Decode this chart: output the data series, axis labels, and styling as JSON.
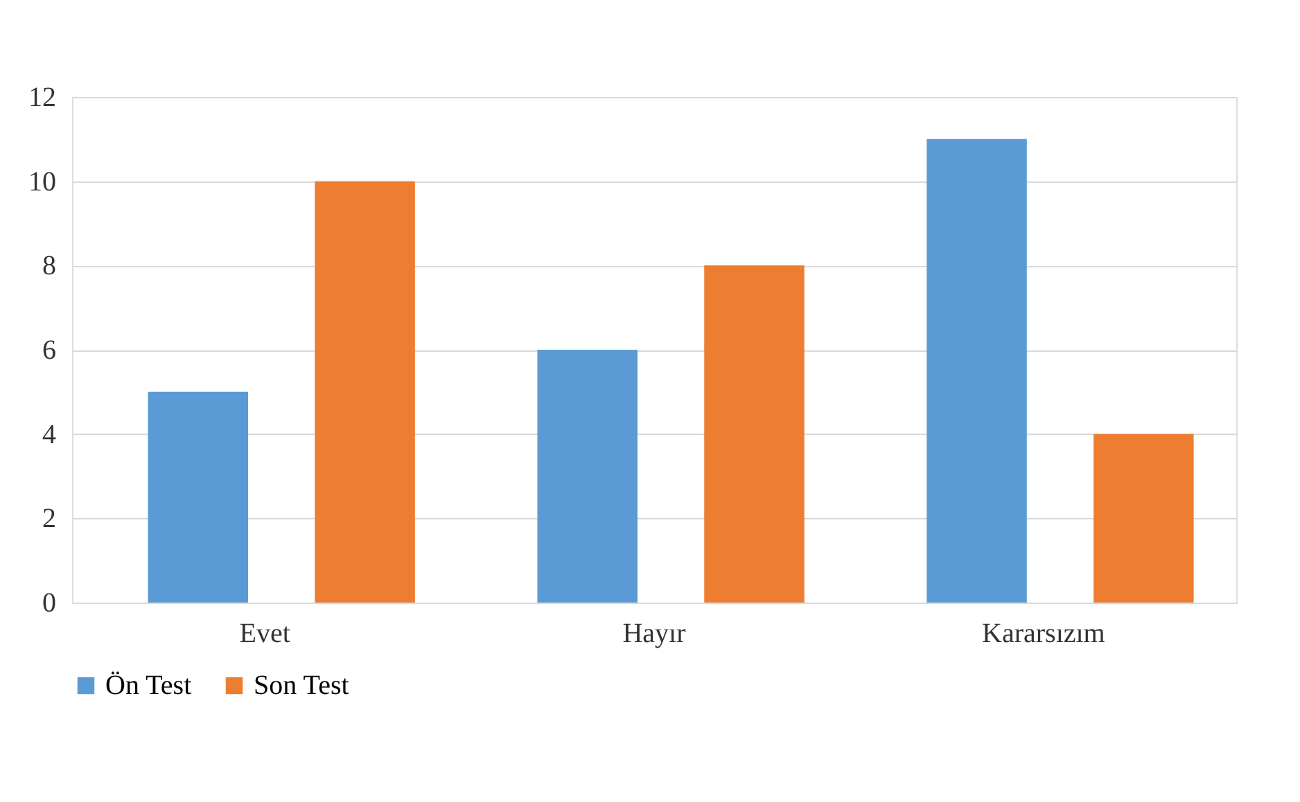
{
  "chart_data": {
    "type": "bar",
    "categories": [
      "Evet",
      "Hayır",
      "Kararsızım"
    ],
    "series": [
      {
        "name": "Ön Test",
        "color": "#5b9bd5",
        "values": [
          5,
          6,
          11
        ]
      },
      {
        "name": "Son Test",
        "color": "#ed7d31",
        "values": [
          10,
          8,
          4
        ]
      }
    ],
    "ylim": [
      0,
      12
    ],
    "yticks": [
      0,
      2,
      4,
      6,
      8,
      10,
      12
    ],
    "grid": "y",
    "legend": "bottom"
  }
}
